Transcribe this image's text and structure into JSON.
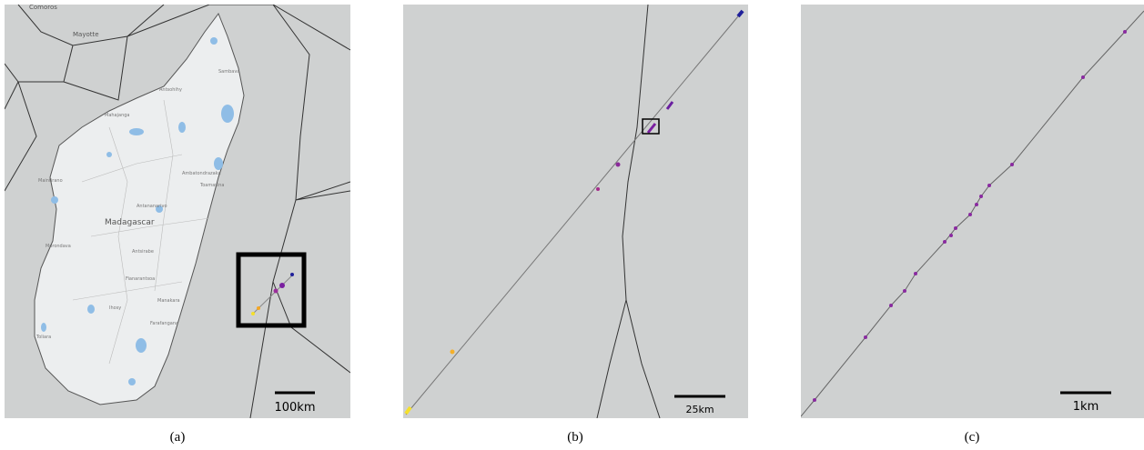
{
  "panels": [
    {
      "caption": "(a)",
      "scale_label": "100km",
      "labels": {
        "country": "Madagascar",
        "islands": [
          "Comoros",
          "Mayotte"
        ],
        "cities": [
          "Mahajanga",
          "Antananarivo",
          "Toamasina",
          "Fianarantsoa",
          "Morondava",
          "Toliara",
          "Sambava",
          "Antsohihy",
          "Ambatondrazaka",
          "Antsirabe",
          "Manakara",
          "Farafangana",
          "Ihosy",
          "Maintirano"
        ]
      }
    },
    {
      "caption": "(b)",
      "scale_label": "25km"
    },
    {
      "caption": "(c)",
      "scale_label": "1km"
    }
  ]
}
